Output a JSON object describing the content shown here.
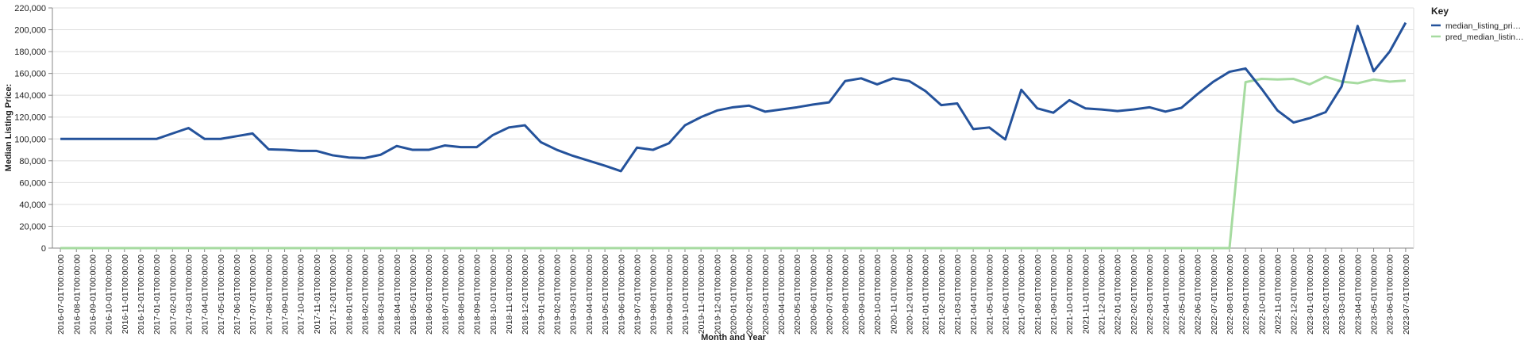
{
  "chart_data": {
    "type": "line",
    "x_label": "Month and Year",
    "y_label": "Median Listing Price:",
    "legend_title": "Key",
    "legend_position": "right",
    "grid": true,
    "categories": [
      "2016-07-01T00:00:00",
      "2016-08-01T00:00:00",
      "2016-09-01T00:00:00",
      "2016-10-01T00:00:00",
      "2016-11-01T00:00:00",
      "2016-12-01T00:00:00",
      "2017-01-01T00:00:00",
      "2017-02-01T00:00:00",
      "2017-03-01T00:00:00",
      "2017-04-01T00:00:00",
      "2017-05-01T00:00:00",
      "2017-06-01T00:00:00",
      "2017-07-01T00:00:00",
      "2017-08-01T00:00:00",
      "2017-09-01T00:00:00",
      "2017-10-01T00:00:00",
      "2017-11-01T00:00:00",
      "2017-12-01T00:00:00",
      "2018-01-01T00:00:00",
      "2018-02-01T00:00:00",
      "2018-03-01T00:00:00",
      "2018-04-01T00:00:00",
      "2018-05-01T00:00:00",
      "2018-06-01T00:00:00",
      "2018-07-01T00:00:00",
      "2018-08-01T00:00:00",
      "2018-09-01T00:00:00",
      "2018-10-01T00:00:00",
      "2018-11-01T00:00:00",
      "2018-12-01T00:00:00",
      "2019-01-01T00:00:00",
      "2019-02-01T00:00:00",
      "2019-03-01T00:00:00",
      "2019-04-01T00:00:00",
      "2019-05-01T00:00:00",
      "2019-06-01T00:00:00",
      "2019-07-01T00:00:00",
      "2019-08-01T00:00:00",
      "2019-09-01T00:00:00",
      "2019-10-01T00:00:00",
      "2019-11-01T00:00:00",
      "2019-12-01T00:00:00",
      "2020-01-01T00:00:00",
      "2020-02-01T00:00:00",
      "2020-03-01T00:00:00",
      "2020-04-01T00:00:00",
      "2020-05-01T00:00:00",
      "2020-06-01T00:00:00",
      "2020-07-01T00:00:00",
      "2020-08-01T00:00:00",
      "2020-09-01T00:00:00",
      "2020-10-01T00:00:00",
      "2020-11-01T00:00:00",
      "2020-12-01T00:00:00",
      "2021-01-01T00:00:00",
      "2021-02-01T00:00:00",
      "2021-03-01T00:00:00",
      "2021-04-01T00:00:00",
      "2021-05-01T00:00:00",
      "2021-06-01T00:00:00",
      "2021-07-01T00:00:00",
      "2021-08-01T00:00:00",
      "2021-09-01T00:00:00",
      "2021-10-01T00:00:00",
      "2021-11-01T00:00:00",
      "2021-12-01T00:00:00",
      "2022-01-01T00:00:00",
      "2022-02-01T00:00:00",
      "2022-03-01T00:00:00",
      "2022-04-01T00:00:00",
      "2022-05-01T00:00:00",
      "2022-06-01T00:00:00",
      "2022-07-01T00:00:00",
      "2022-08-01T00:00:00",
      "2022-09-01T00:00:00",
      "2022-10-01T00:00:00",
      "2022-11-01T00:00:00",
      "2022-12-01T00:00:00",
      "2023-01-01T00:00:00",
      "2023-02-01T00:00:00",
      "2023-03-01T00:00:00",
      "2023-04-01T00:00:00",
      "2023-05-01T00:00:00",
      "2023-06-01T00:00:00",
      "2023-07-01T00:00:00"
    ],
    "series": [
      {
        "name": "median_listing_pri…",
        "color": "#24529b",
        "values": [
          100000,
          100000,
          100000,
          100000,
          100000,
          100000,
          100000,
          105000,
          110000,
          100000,
          100000,
          102500,
          105000,
          90500,
          90000,
          89000,
          89000,
          85000,
          83000,
          82500,
          85500,
          93500,
          90000,
          90000,
          94000,
          92500,
          92500,
          103500,
          110500,
          112500,
          97000,
          90000,
          84500,
          80000,
          75500,
          70500,
          92000,
          90000,
          96000,
          112500,
          120000,
          126000,
          129000,
          130500,
          125000,
          127000,
          129000,
          131500,
          133500,
          153000,
          155500,
          150000,
          155500,
          153000,
          144000,
          131000,
          132500,
          109000,
          110500,
          99500,
          145000,
          128000,
          124000,
          135500,
          128000,
          127000,
          125500,
          127000,
          129000,
          125000,
          128500,
          141000,
          152500,
          161500,
          164500,
          146000,
          126000,
          115000,
          119000,
          124500,
          148000,
          203500,
          162000,
          180000,
          206500
        ]
      },
      {
        "name": "pred_median_listin…",
        "color": "#a6dba0",
        "values": [
          0,
          0,
          0,
          0,
          0,
          0,
          0,
          0,
          0,
          0,
          0,
          0,
          0,
          0,
          0,
          0,
          0,
          0,
          0,
          0,
          0,
          0,
          0,
          0,
          0,
          0,
          0,
          0,
          0,
          0,
          0,
          0,
          0,
          0,
          0,
          0,
          0,
          0,
          0,
          0,
          0,
          0,
          0,
          0,
          0,
          0,
          0,
          0,
          0,
          0,
          0,
          0,
          0,
          0,
          0,
          0,
          0,
          0,
          0,
          0,
          0,
          0,
          0,
          0,
          0,
          0,
          0,
          0,
          0,
          0,
          0,
          0,
          0,
          0,
          152000,
          155000,
          154500,
          155000,
          150000,
          157000,
          152500,
          151000,
          154500,
          152500,
          153500
        ]
      }
    ],
    "ylim": [
      0,
      220000
    ],
    "yticks": [
      0,
      {
        "value": 20000,
        "label": "20,000"
      },
      {
        "value": 40000,
        "label": "40,000"
      },
      {
        "value": 60000,
        "label": "60,000"
      },
      {
        "value": 80000,
        "label": "80,000"
      },
      {
        "value": 100000,
        "label": "100,000"
      },
      {
        "value": 120000,
        "label": "120,000"
      },
      {
        "value": 140000,
        "label": "140,000"
      },
      {
        "value": 160000,
        "label": "160,000"
      },
      {
        "value": 180000,
        "label": "180,000"
      },
      {
        "value": 200000,
        "label": "200,000"
      },
      {
        "value": 220000,
        "label": "220,000"
      }
    ]
  }
}
